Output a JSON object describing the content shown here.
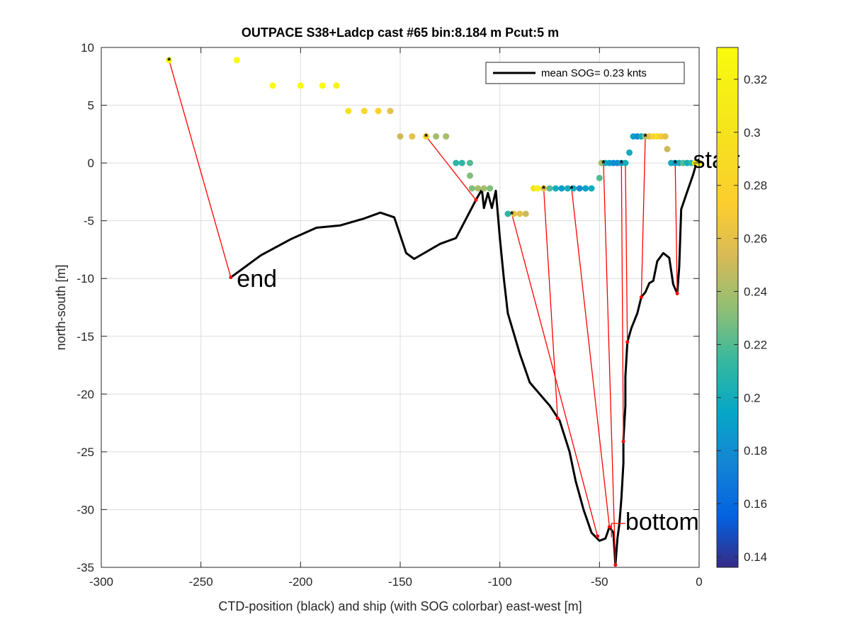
{
  "chart_data": {
    "type": "scatter",
    "title": "OUTPACE S38+Ladcp cast #65 bin:8.184 m  Pcut:5 m",
    "xlabel": "CTD-position (black) and ship (with SOG colorbar) east-west [m]",
    "ylabel": "north-south [m]",
    "xlim": [
      -300,
      0
    ],
    "ylim": [
      -35,
      10
    ],
    "xticks": [
      -300,
      -250,
      -200,
      -150,
      -100,
      -50,
      0
    ],
    "yticks": [
      -35,
      -30,
      -25,
      -20,
      -15,
      -10,
      -5,
      0,
      5,
      10
    ],
    "grid": true,
    "legend": {
      "position": "top-right",
      "label": "mean SOG=  0.23 knts"
    },
    "colorbar": {
      "range": [
        0.136,
        0.332
      ],
      "ticks": [
        0.14,
        0.16,
        0.18,
        0.2,
        0.22,
        0.24,
        0.26,
        0.28,
        0.3,
        0.32
      ],
      "tick_labels": [
        "0.14",
        "0.16",
        "0.18",
        "0.2",
        "0.22",
        "0.24",
        "0.26",
        "0.28",
        "0.3",
        "0.32"
      ],
      "colormap": "parula"
    },
    "annotations": [
      {
        "text": "start",
        "x": -3,
        "y": 0.3
      },
      {
        "text": "end",
        "x": -232,
        "y": -10
      },
      {
        "text": "bottom",
        "x": -37,
        "y": -31
      }
    ],
    "ctd_track": {
      "name": "mean SOG=  0.23 knts",
      "color": "#000000",
      "points": [
        [
          -235,
          -9.9
        ],
        [
          -220,
          -8
        ],
        [
          -205,
          -6.6
        ],
        [
          -192,
          -5.6
        ],
        [
          -180,
          -5.4
        ],
        [
          -168,
          -4.8
        ],
        [
          -160,
          -4.3
        ],
        [
          -153,
          -4.7
        ],
        [
          -147,
          -7.8
        ],
        [
          -143,
          -8.3
        ],
        [
          -130,
          -7
        ],
        [
          -122,
          -6.5
        ],
        [
          -112,
          -3.2
        ],
        [
          -109,
          -2.3
        ],
        [
          -108,
          -3.9
        ],
        [
          -106,
          -2.6
        ],
        [
          -104,
          -3.9
        ],
        [
          -102,
          -2.4
        ],
        [
          -100,
          -6.5
        ],
        [
          -98,
          -10
        ],
        [
          -96,
          -13
        ],
        [
          -90,
          -16.5
        ],
        [
          -85,
          -19
        ],
        [
          -80,
          -20
        ],
        [
          -75,
          -21
        ],
        [
          -70,
          -22.3
        ],
        [
          -65,
          -25
        ],
        [
          -62,
          -27.5
        ],
        [
          -58,
          -30
        ],
        [
          -54,
          -32
        ],
        [
          -50,
          -32.7
        ],
        [
          -47,
          -32.5
        ],
        [
          -45,
          -31.5
        ],
        [
          -43,
          -32
        ],
        [
          -42,
          -34.8
        ],
        [
          -41,
          -32.5
        ],
        [
          -40,
          -31.2
        ],
        [
          -39,
          -29
        ],
        [
          -38,
          -26
        ],
        [
          -38,
          -24
        ],
        [
          -37,
          -21
        ],
        [
          -37,
          -18.5
        ],
        [
          -36,
          -15.5
        ],
        [
          -34,
          -14.3
        ],
        [
          -31,
          -13
        ],
        [
          -29,
          -11.6
        ],
        [
          -27,
          -11.2
        ],
        [
          -25,
          -10.4
        ],
        [
          -23,
          -10.2
        ],
        [
          -21,
          -8.5
        ],
        [
          -18,
          -7.8
        ],
        [
          -15,
          -8.2
        ],
        [
          -13,
          -10.5
        ],
        [
          -11,
          -11.3
        ],
        [
          -10,
          -9
        ],
        [
          -9,
          -4
        ],
        [
          -6,
          -2.5
        ],
        [
          -3,
          -1
        ],
        [
          -1,
          0.2
        ],
        [
          0,
          0.3
        ]
      ]
    },
    "ship_positions": [
      {
        "x": -266,
        "y": 8.9,
        "sog": 0.33
      },
      {
        "x": -232,
        "y": 8.9,
        "sog": 0.33
      },
      {
        "x": -214,
        "y": 6.7,
        "sog": 0.33
      },
      {
        "x": -200,
        "y": 6.7,
        "sog": 0.33
      },
      {
        "x": -189,
        "y": 6.7,
        "sog": 0.33
      },
      {
        "x": -182,
        "y": 6.7,
        "sog": 0.32
      },
      {
        "x": -176,
        "y": 4.5,
        "sog": 0.3
      },
      {
        "x": -168,
        "y": 4.5,
        "sog": 0.285
      },
      {
        "x": -161,
        "y": 4.5,
        "sog": 0.28
      },
      {
        "x": -155,
        "y": 4.5,
        "sog": 0.26
      },
      {
        "x": -150,
        "y": 2.3,
        "sog": 0.25
      },
      {
        "x": -144,
        "y": 2.3,
        "sog": 0.26
      },
      {
        "x": -137,
        "y": 2.3,
        "sog": 0.28
      },
      {
        "x": -132,
        "y": 2.3,
        "sog": 0.24
      },
      {
        "x": -127,
        "y": 2.3,
        "sog": 0.24
      },
      {
        "x": -122,
        "y": 0.0,
        "sog": 0.21
      },
      {
        "x": -119,
        "y": 0.0,
        "sog": 0.21
      },
      {
        "x": -115,
        "y": 0.0,
        "sog": 0.22
      },
      {
        "x": -115,
        "y": -1.1,
        "sog": 0.23
      },
      {
        "x": -111,
        "y": -2.2,
        "sog": 0.24
      },
      {
        "x": -114,
        "y": -2.2,
        "sog": 0.23
      },
      {
        "x": -108,
        "y": -2.2,
        "sog": 0.24
      },
      {
        "x": -105,
        "y": -2.2,
        "sog": 0.23
      },
      {
        "x": -96,
        "y": -4.4,
        "sog": 0.21
      },
      {
        "x": -93,
        "y": -4.4,
        "sog": 0.26
      },
      {
        "x": -90,
        "y": -4.4,
        "sog": 0.26
      },
      {
        "x": -87,
        "y": -4.4,
        "sog": 0.25
      },
      {
        "x": -83,
        "y": -2.2,
        "sog": 0.3
      },
      {
        "x": -81,
        "y": -2.2,
        "sog": 0.32
      },
      {
        "x": -78,
        "y": -2.2,
        "sog": 0.26
      },
      {
        "x": -75,
        "y": -2.2,
        "sog": 0.22
      },
      {
        "x": -72,
        "y": -2.2,
        "sog": 0.2
      },
      {
        "x": -69,
        "y": -2.2,
        "sog": 0.19
      },
      {
        "x": -66,
        "y": -2.2,
        "sog": 0.2
      },
      {
        "x": -63,
        "y": -2.2,
        "sog": 0.2
      },
      {
        "x": -60,
        "y": -2.2,
        "sog": 0.18
      },
      {
        "x": -57,
        "y": -2.2,
        "sog": 0.19
      },
      {
        "x": -54,
        "y": -2.2,
        "sog": 0.2
      },
      {
        "x": -50,
        "y": -1.3,
        "sog": 0.22
      },
      {
        "x": -49,
        "y": 0.0,
        "sog": 0.24
      },
      {
        "x": -47,
        "y": 0.0,
        "sog": 0.2
      },
      {
        "x": -45,
        "y": 0.0,
        "sog": 0.19
      },
      {
        "x": -43,
        "y": 0.0,
        "sog": 0.18
      },
      {
        "x": -41,
        "y": 0.0,
        "sog": 0.18
      },
      {
        "x": -39,
        "y": 0.0,
        "sog": 0.19
      },
      {
        "x": -37,
        "y": 0.0,
        "sog": 0.2
      },
      {
        "x": -35,
        "y": 0.9,
        "sog": 0.2
      },
      {
        "x": -33,
        "y": 2.3,
        "sog": 0.19
      },
      {
        "x": -31,
        "y": 2.3,
        "sog": 0.18
      },
      {
        "x": -29,
        "y": 2.3,
        "sog": 0.2
      },
      {
        "x": -27,
        "y": 2.3,
        "sog": 0.24
      },
      {
        "x": -25,
        "y": 2.3,
        "sog": 0.26
      },
      {
        "x": -23,
        "y": 2.3,
        "sog": 0.28
      },
      {
        "x": -21,
        "y": 2.3,
        "sog": 0.29
      },
      {
        "x": -19,
        "y": 2.3,
        "sog": 0.27
      },
      {
        "x": -17,
        "y": 2.3,
        "sog": 0.26
      },
      {
        "x": -16,
        "y": 1.2,
        "sog": 0.25
      },
      {
        "x": -14,
        "y": 0.0,
        "sog": 0.2
      },
      {
        "x": -12,
        "y": 0.0,
        "sog": 0.19
      },
      {
        "x": -10,
        "y": 0.0,
        "sog": 0.2
      },
      {
        "x": -8,
        "y": 0.0,
        "sog": 0.22
      },
      {
        "x": -6,
        "y": 0.0,
        "sog": 0.2
      },
      {
        "x": -4,
        "y": 0.0,
        "sog": 0.21
      },
      {
        "x": -2,
        "y": 0.0,
        "sog": 0.3
      },
      {
        "x": 0,
        "y": 0.0,
        "sog": 0.32
      }
    ],
    "marked_ship_points": [
      [
        -266,
        8.9
      ],
      [
        -137,
        2.3
      ],
      [
        -94,
        -4.4
      ],
      [
        -78,
        -2.2
      ],
      [
        -64,
        -2.2
      ],
      [
        -48,
        0.0
      ],
      [
        -39,
        0.0
      ],
      [
        -27,
        2.3
      ],
      [
        -12,
        0.0
      ],
      [
        0,
        0.0
      ]
    ],
    "connecting_lines": {
      "color": "#ff0000",
      "pairs": [
        [
          [
            -266,
            8.9
          ],
          [
            -235,
            -9.9
          ]
        ],
        [
          [
            -137,
            2.3
          ],
          [
            -112,
            -3.2
          ]
        ],
        [
          [
            -94,
            -4.4
          ],
          [
            -51,
            -32.3
          ]
        ],
        [
          [
            -78,
            -2.2
          ],
          [
            -71,
            -22.1
          ]
        ],
        [
          [
            -64,
            -2.2
          ],
          [
            -45,
            -31.5
          ]
        ],
        [
          [
            -48,
            0.0
          ],
          [
            -42,
            -34.8
          ]
        ],
        [
          [
            -39,
            0.0
          ],
          [
            -38,
            -24.1
          ]
        ],
        [
          [
            -37,
            0.0
          ],
          [
            -36,
            -15.5
          ]
        ],
        [
          [
            -27,
            2.3
          ],
          [
            -29,
            -11.6
          ]
        ],
        [
          [
            -12,
            0.0
          ],
          [
            -11,
            -11.3
          ]
        ],
        [
          [
            -1,
            0.3
          ],
          [
            -2,
            0.0
          ]
        ]
      ]
    }
  }
}
